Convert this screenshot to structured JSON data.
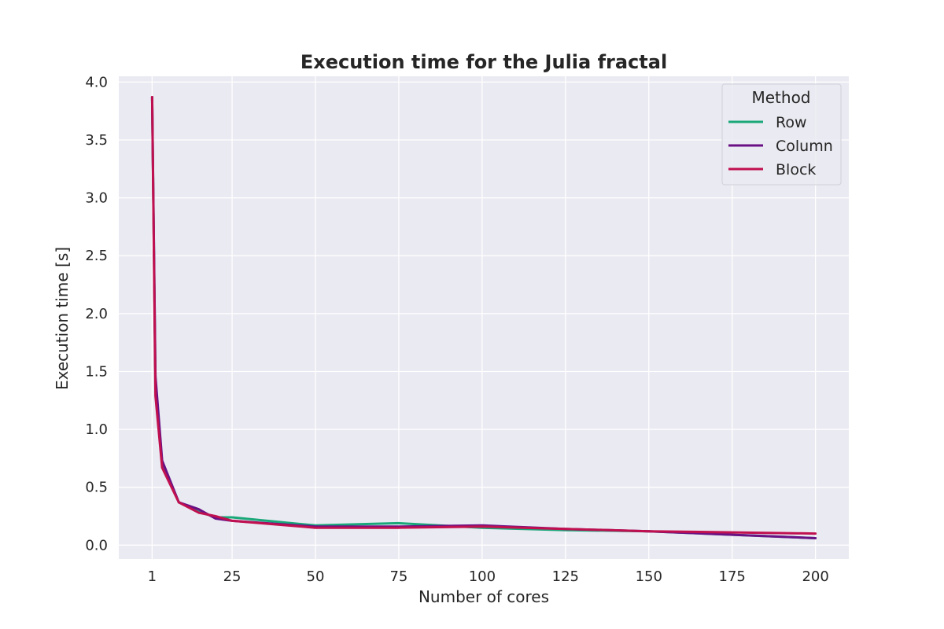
{
  "chart_data": {
    "type": "line",
    "title": "Execution time for the Julia fractal",
    "xlabel": "Number of cores",
    "ylabel": "Execution time [s]",
    "xlim": [
      -9,
      210
    ],
    "ylim": [
      -0.12,
      4.05
    ],
    "xticks": [
      1,
      25,
      50,
      75,
      100,
      125,
      150,
      175,
      200
    ],
    "yticks": [
      0.0,
      0.5,
      1.0,
      1.5,
      2.0,
      2.5,
      3.0,
      3.5,
      4.0
    ],
    "ytick_labels": [
      "0.0",
      "0.5",
      "1.0",
      "1.5",
      "2.0",
      "2.5",
      "3.0",
      "3.5",
      "4.0"
    ],
    "grid": true,
    "legend": {
      "title": "Method",
      "position": "top-right"
    },
    "background": "#eaeaf2",
    "series": [
      {
        "name": "Row",
        "color": "#1aa879",
        "x": [
          1,
          2,
          4,
          9,
          15,
          20,
          25,
          50,
          75,
          100,
          125,
          150,
          175,
          200
        ],
        "y": [
          3.87,
          1.42,
          0.7,
          0.37,
          0.29,
          0.24,
          0.24,
          0.17,
          0.19,
          0.15,
          0.13,
          0.12,
          0.09,
          0.06
        ]
      },
      {
        "name": "Column",
        "color": "#6a1085",
        "x": [
          1,
          2,
          4,
          9,
          15,
          20,
          25,
          50,
          75,
          100,
          125,
          150,
          175,
          200
        ],
        "y": [
          3.87,
          1.46,
          0.73,
          0.37,
          0.31,
          0.23,
          0.21,
          0.16,
          0.16,
          0.17,
          0.14,
          0.12,
          0.09,
          0.06
        ]
      },
      {
        "name": "Block",
        "color": "#c0104f",
        "x": [
          1,
          2,
          4,
          9,
          15,
          20,
          25,
          50,
          75,
          100,
          125,
          150,
          175,
          200
        ],
        "y": [
          3.87,
          1.29,
          0.67,
          0.37,
          0.28,
          0.25,
          0.21,
          0.15,
          0.15,
          0.16,
          0.14,
          0.12,
          0.11,
          0.1
        ]
      }
    ]
  }
}
